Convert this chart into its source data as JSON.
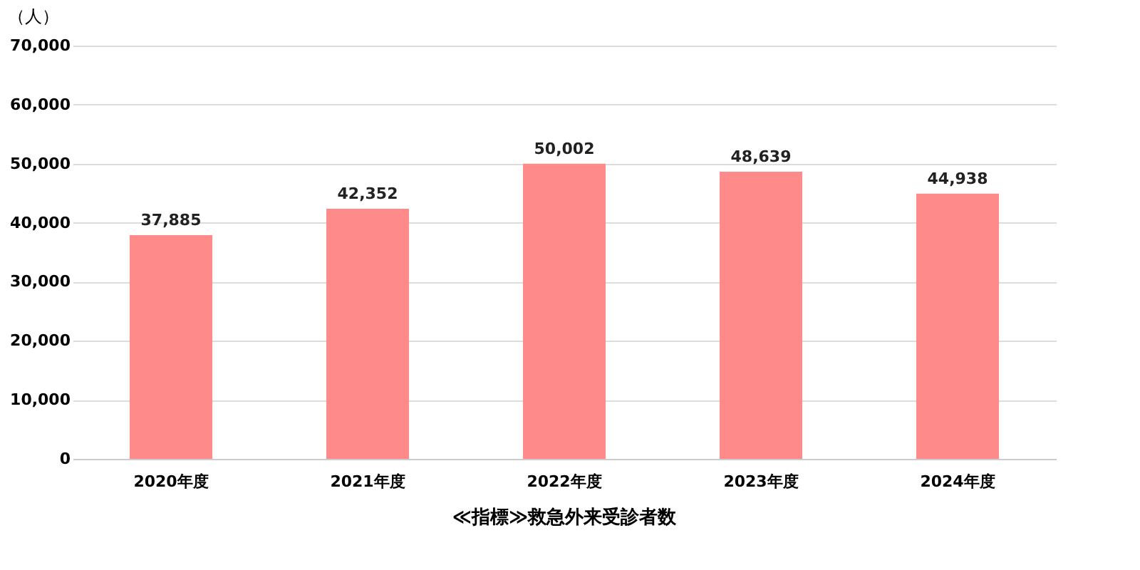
{
  "chart_data": {
    "type": "bar",
    "title": "≪指標≫救急外来受診者数",
    "ylabel": "（人）",
    "categories": [
      "2020年度",
      "2021年度",
      "2022年度",
      "2023年度",
      "2024年度"
    ],
    "values": [
      37885,
      42352,
      50002,
      48639,
      44938
    ],
    "color": "#ff8a8a",
    "value_labels": [
      "37,885",
      "42,352",
      "50,002",
      "48,639",
      "44,938"
    ],
    "ylim": [
      0,
      70000
    ],
    "yticks": [
      0,
      {
        "value": 10000,
        "label": "10,000"
      },
      {
        "value": 20000,
        "label": "20,000"
      },
      {
        "value": 30000,
        "label": "30,000"
      },
      {
        "value": 40000,
        "label": "40,000"
      },
      {
        "value": 50000,
        "label": "50,000"
      },
      {
        "value": 60000,
        "label": "60,000"
      },
      {
        "value": 70000,
        "label": "70,000"
      }
    ],
    "grid": "y"
  }
}
